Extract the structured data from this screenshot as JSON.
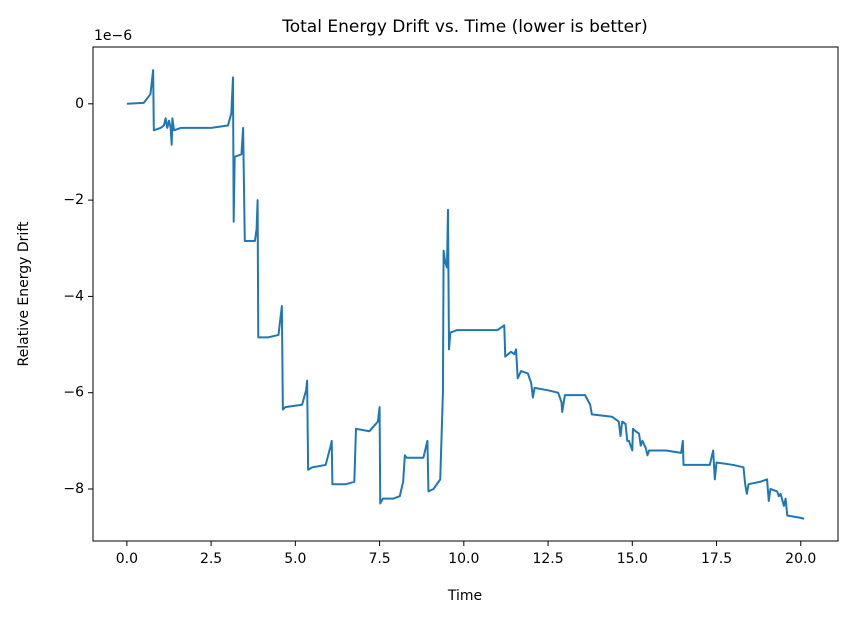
{
  "chart_data": {
    "type": "line",
    "title": "Total Energy Drift vs. Time (lower is better)",
    "x_label": "Time",
    "y_label": "Relative Energy Drift",
    "y_offset_label": "1e−6",
    "xlim": [
      -1.005,
      21.105
    ],
    "ylim": [
      -9.08,
      1.18
    ],
    "xticks": [
      {
        "value": 0,
        "label": "0.0"
      },
      {
        "value": 2.5,
        "label": "2.5"
      },
      {
        "value": 5,
        "label": "5.0"
      },
      {
        "value": 7.5,
        "label": "7.5"
      },
      {
        "value": 10,
        "label": "10.0"
      },
      {
        "value": 12.5,
        "label": "12.5"
      },
      {
        "value": 15,
        "label": "15.0"
      },
      {
        "value": 17.5,
        "label": "17.5"
      },
      {
        "value": 20,
        "label": "20.0"
      }
    ],
    "yticks": [
      {
        "value": -8,
        "label": "−8"
      },
      {
        "value": -6,
        "label": "−6"
      },
      {
        "value": -4,
        "label": "−4"
      },
      {
        "value": -2,
        "label": "−2"
      },
      0
    ],
    "grid": false,
    "x": [
      0.0,
      0.5,
      0.7,
      0.78,
      0.8,
      1.0,
      1.1,
      1.15,
      1.2,
      1.25,
      1.3,
      1.33,
      1.35,
      1.4,
      1.6,
      2.0,
      2.5,
      3.0,
      3.1,
      3.15,
      3.17,
      3.2,
      3.4,
      3.45,
      3.5,
      3.8,
      3.85,
      3.88,
      3.9,
      4.2,
      4.5,
      4.6,
      4.63,
      4.7,
      5.2,
      5.32,
      5.35,
      5.38,
      5.5,
      5.9,
      6.05,
      6.08,
      6.1,
      6.5,
      6.75,
      6.8,
      7.2,
      7.45,
      7.5,
      7.52,
      7.6,
      7.9,
      8.1,
      8.2,
      8.25,
      8.3,
      8.8,
      8.92,
      8.95,
      9.1,
      9.3,
      9.38,
      9.4,
      9.45,
      9.5,
      9.53,
      9.56,
      9.6,
      9.8,
      10.5,
      11.0,
      11.2,
      11.23,
      11.4,
      11.5,
      11.55,
      11.6,
      11.7,
      11.9,
      12.0,
      12.05,
      12.1,
      12.5,
      12.8,
      12.9,
      12.92,
      13.0,
      13.6,
      13.75,
      13.8,
      14.4,
      14.6,
      14.65,
      14.7,
      14.8,
      14.85,
      14.9,
      15.0,
      15.02,
      15.1,
      15.2,
      15.25,
      15.3,
      15.4,
      15.45,
      15.5,
      16.0,
      16.45,
      16.5,
      16.52,
      16.8,
      17.3,
      17.4,
      17.45,
      17.5,
      18.0,
      18.3,
      18.35,
      18.4,
      18.45,
      18.8,
      19.0,
      19.05,
      19.1,
      19.3,
      19.35,
      19.4,
      19.5,
      19.55,
      19.6,
      20.0,
      20.1
    ],
    "series": [
      {
        "color": "#1f77b4",
        "values": [
          0,
          0.02,
          0.2,
          0.7,
          -0.55,
          -0.5,
          -0.45,
          -0.3,
          -0.5,
          -0.35,
          -0.5,
          -0.85,
          -0.3,
          -0.55,
          -0.5,
          -0.5,
          -0.5,
          -0.45,
          -0.2,
          0.55,
          -2.45,
          -1.1,
          -1.05,
          -0.5,
          -2.85,
          -2.85,
          -2.6,
          -2.0,
          -4.85,
          -4.85,
          -4.8,
          -4.2,
          -6.35,
          -6.3,
          -6.25,
          -5.95,
          -5.75,
          -7.6,
          -7.55,
          -7.5,
          -7.1,
          -7.0,
          -7.9,
          -7.9,
          -7.85,
          -6.75,
          -6.8,
          -6.6,
          -6.3,
          -8.3,
          -8.2,
          -8.2,
          -8.15,
          -7.85,
          -7.3,
          -7.35,
          -7.35,
          -7.0,
          -8.05,
          -8.0,
          -7.8,
          -6.0,
          -3.05,
          -3.3,
          -3.4,
          -2.2,
          -5.1,
          -4.75,
          -4.7,
          -4.7,
          -4.7,
          -4.6,
          -5.25,
          -5.15,
          -5.2,
          -5.1,
          -5.7,
          -5.55,
          -5.6,
          -5.8,
          -6.1,
          -5.9,
          -5.95,
          -6.0,
          -6.2,
          -6.4,
          -6.05,
          -6.05,
          -6.25,
          -6.45,
          -6.5,
          -6.6,
          -6.9,
          -6.6,
          -6.65,
          -7.0,
          -7.0,
          -7.2,
          -6.75,
          -6.8,
          -6.85,
          -7.1,
          -7.0,
          -7.15,
          -7.3,
          -7.2,
          -7.2,
          -7.25,
          -7.0,
          -7.5,
          -7.5,
          -7.5,
          -7.2,
          -7.8,
          -7.45,
          -7.5,
          -7.55,
          -7.9,
          -8.1,
          -7.9,
          -7.85,
          -7.8,
          -8.25,
          -8.0,
          -8.05,
          -8.15,
          -8.1,
          -8.35,
          -8.2,
          -8.55,
          -8.6,
          -8.62
        ]
      }
    ]
  }
}
